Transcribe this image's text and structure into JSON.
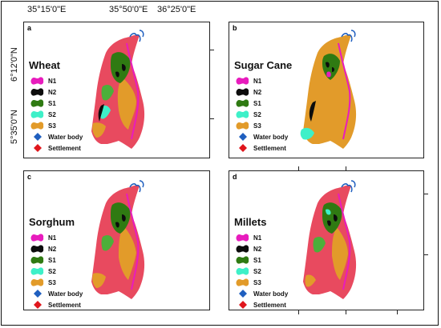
{
  "coordinates": {
    "top": [
      "35°15'0\"E",
      "35°50'0\"E",
      "36°25'0\"E"
    ],
    "left": [
      "6°12'0\"N",
      "5°35'0\"N"
    ]
  },
  "legend": [
    {
      "label": "N1",
      "color": "#e81cbd",
      "shape": "blob"
    },
    {
      "label": "N2",
      "color": "#0d0d0d",
      "shape": "blob"
    },
    {
      "label": "S1",
      "color": "#2f7a12",
      "shape": "blob"
    },
    {
      "label": "S2",
      "color": "#3ef0c8",
      "shape": "blob"
    },
    {
      "label": "S3",
      "color": "#e29b2a",
      "shape": "blob"
    },
    {
      "label": "Water body",
      "color": "#1f5fbf",
      "shape": "diamond"
    },
    {
      "label": "Settlement",
      "color": "#e0161c",
      "shape": "diamond"
    }
  ],
  "panels": [
    {
      "letter": "a",
      "crop": "Wheat"
    },
    {
      "letter": "b",
      "crop": "Sugar Cane"
    },
    {
      "letter": "c",
      "crop": "Sorghum"
    },
    {
      "letter": "d",
      "crop": "Millets"
    }
  ]
}
